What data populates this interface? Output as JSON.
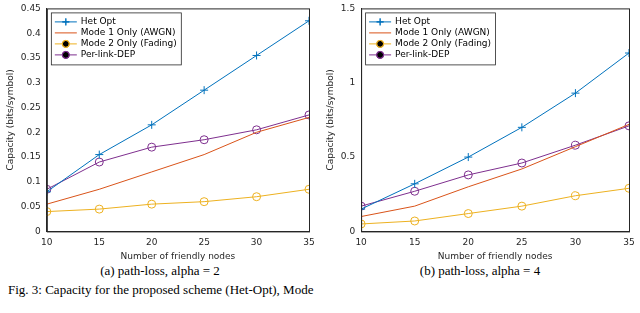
{
  "chart_data": [
    {
      "type": "line",
      "subtitle": "(a) path-loss, alpha = 2",
      "x_label": "Number of friendly nodes",
      "y_label": "Capacity (bits/symbol)",
      "x": [
        10,
        15,
        20,
        25,
        30,
        35
      ],
      "xlim": [
        10,
        35
      ],
      "xticks": [
        10,
        15,
        20,
        25,
        30,
        35
      ],
      "ylim": [
        0,
        0.45
      ],
      "yticks": [
        0,
        0.05,
        0.1,
        0.15,
        0.2,
        0.25,
        0.3,
        0.35,
        0.4,
        0.45
      ],
      "grid": false,
      "legend": "top-left",
      "series": [
        {
          "name": "Het Opt",
          "color": "#0072bd",
          "marker": "plus",
          "values": [
            0.08,
            0.155,
            0.215,
            0.285,
            0.355,
            0.425
          ]
        },
        {
          "name": "Mode 1 Only (AWGN)",
          "color": "#d95319",
          "marker": "none",
          "values": [
            0.055,
            0.085,
            0.12,
            0.155,
            0.2,
            0.23
          ]
        },
        {
          "name": "Mode 2 Only (Fading)",
          "color": "#edb120",
          "marker": "circle",
          "values": [
            0.04,
            0.045,
            0.055,
            0.06,
            0.07,
            0.085
          ]
        },
        {
          "name": "Per-link-DEP",
          "color": "#7e2f8e",
          "marker": "circle",
          "values": [
            0.085,
            0.14,
            0.17,
            0.185,
            0.205,
            0.235
          ]
        }
      ]
    },
    {
      "type": "line",
      "subtitle": "(b) path-loss, alpha = 4",
      "x_label": "Number of friendly nodes",
      "y_label": "Capacity (bits/symbol)",
      "x": [
        10,
        15,
        20,
        25,
        30,
        35
      ],
      "xlim": [
        10,
        35
      ],
      "xticks": [
        10,
        15,
        20,
        25,
        30,
        35
      ],
      "ylim": [
        0,
        1.5
      ],
      "yticks": [
        0,
        0.5,
        1,
        1.5
      ],
      "grid": false,
      "legend": "top-left",
      "series": [
        {
          "name": "Het Opt",
          "color": "#0072bd",
          "marker": "plus",
          "values": [
            0.15,
            0.32,
            0.5,
            0.7,
            0.93,
            1.2
          ]
        },
        {
          "name": "Mode 1 Only (AWGN)",
          "color": "#d95319",
          "marker": "none",
          "values": [
            0.1,
            0.17,
            0.3,
            0.42,
            0.57,
            0.72
          ]
        },
        {
          "name": "Mode 2 Only (Fading)",
          "color": "#edb120",
          "marker": "circle",
          "values": [
            0.05,
            0.07,
            0.12,
            0.17,
            0.24,
            0.29
          ]
        },
        {
          "name": "Per-link-DEP",
          "color": "#7e2f8e",
          "marker": "circle",
          "values": [
            0.17,
            0.27,
            0.38,
            0.46,
            0.58,
            0.71
          ]
        }
      ]
    }
  ],
  "caption": "Fig. 3: Capacity for the proposed scheme (Het-Opt), Mode"
}
